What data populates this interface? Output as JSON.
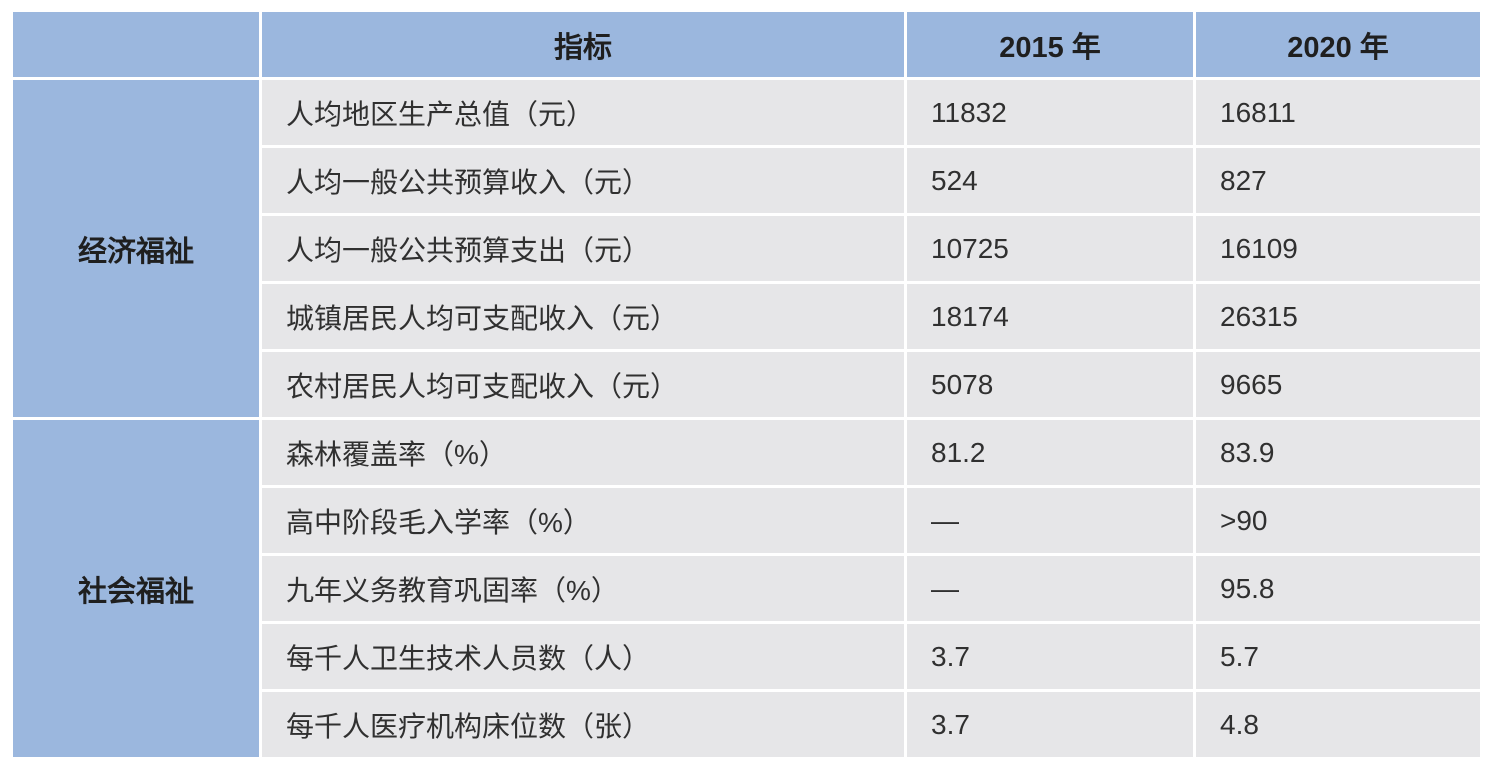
{
  "colors": {
    "header_blue": "#9BB7DE",
    "row_gray": "#E6E6E8",
    "grid_white": "#FFFFFF",
    "text_dark": "#303030"
  },
  "chart_data": {
    "type": "table",
    "columns": {
      "category": "",
      "indicator": "指标",
      "y2015": "2015 年",
      "y2020": "2020 年"
    },
    "sections": [
      {
        "category": "经济福祉",
        "rows": [
          {
            "indicator": "人均地区生产总值（元）",
            "y2015": "11832",
            "y2020": "16811"
          },
          {
            "indicator": "人均一般公共预算收入（元）",
            "y2015": "524",
            "y2020": "827"
          },
          {
            "indicator": "人均一般公共预算支出（元）",
            "y2015": "10725",
            "y2020": "16109"
          },
          {
            "indicator": "城镇居民人均可支配收入（元）",
            "y2015": "18174",
            "y2020": "26315"
          },
          {
            "indicator": "农村居民人均可支配收入（元）",
            "y2015": "5078",
            "y2020": "9665"
          }
        ]
      },
      {
        "category": "社会福祉",
        "rows": [
          {
            "indicator": "森林覆盖率（%）",
            "y2015": "81.2",
            "y2020": "83.9"
          },
          {
            "indicator": "高中阶段毛入学率（%）",
            "y2015": "—",
            "y2020": ">90"
          },
          {
            "indicator": "九年义务教育巩固率（%）",
            "y2015": "—",
            "y2020": "95.8"
          },
          {
            "indicator": "每千人卫生技术人员数（人）",
            "y2015": "3.7",
            "y2020": "5.7"
          },
          {
            "indicator": "每千人医疗机构床位数（张）",
            "y2015": "3.7",
            "y2020": "4.8"
          }
        ]
      }
    ]
  }
}
